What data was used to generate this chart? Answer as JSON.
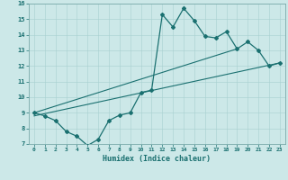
{
  "title": "",
  "xlabel": "Humidex (Indice chaleur)",
  "ylabel": "",
  "xlim": [
    -0.5,
    23.5
  ],
  "ylim": [
    7,
    16
  ],
  "xticks": [
    0,
    1,
    2,
    3,
    4,
    5,
    6,
    7,
    8,
    9,
    10,
    11,
    12,
    13,
    14,
    15,
    16,
    17,
    18,
    19,
    20,
    21,
    22,
    23
  ],
  "yticks": [
    7,
    8,
    9,
    10,
    11,
    12,
    13,
    14,
    15,
    16
  ],
  "bg_color": "#cce8e8",
  "line_color": "#1a7070",
  "line1_x": [
    0,
    1,
    2,
    3,
    4,
    5,
    6,
    7,
    8,
    9,
    10,
    11,
    12,
    13,
    14,
    15,
    16,
    17,
    18,
    19,
    20,
    21,
    22,
    23
  ],
  "line1_y": [
    9.0,
    8.8,
    8.5,
    7.8,
    7.5,
    6.9,
    7.3,
    8.5,
    8.85,
    9.0,
    10.3,
    10.45,
    15.3,
    14.5,
    15.7,
    14.9,
    13.9,
    13.8,
    14.2,
    13.1,
    13.55,
    13.0,
    12.0,
    12.2
  ],
  "line2_x": [
    0,
    19
  ],
  "line2_y": [
    9.0,
    13.1
  ],
  "line3_x": [
    0,
    23
  ],
  "line3_y": [
    8.8,
    12.2
  ],
  "figsize": [
    3.2,
    2.0
  ],
  "dpi": 100
}
